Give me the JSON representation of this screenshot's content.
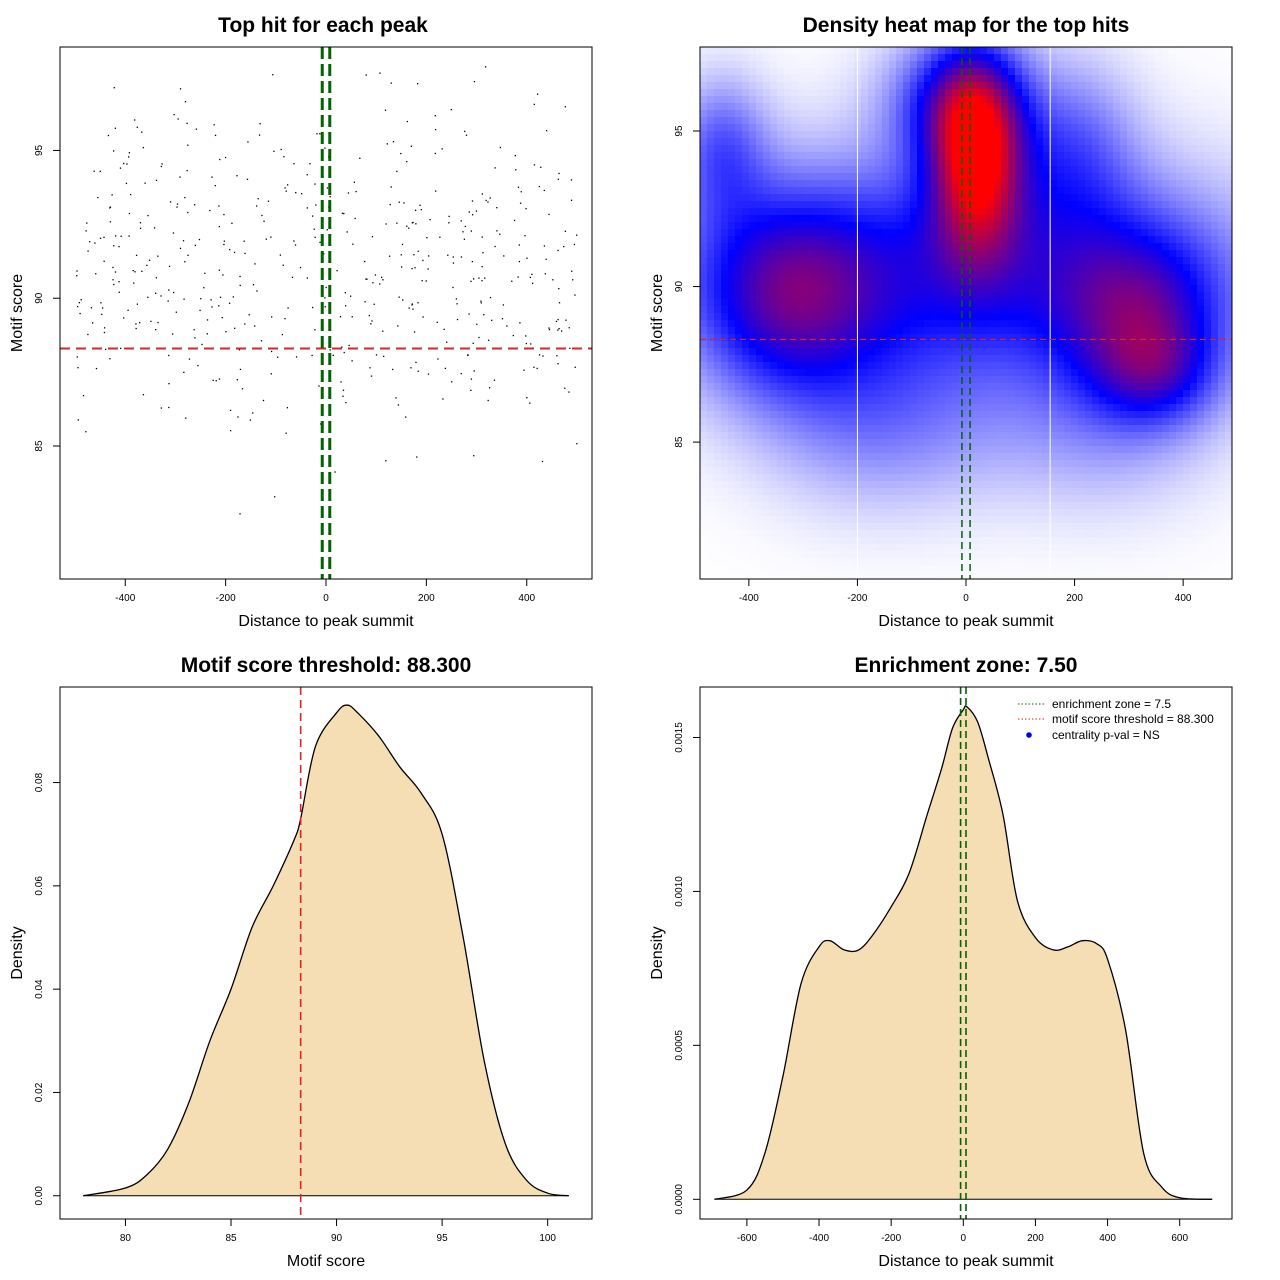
{
  "chart_data": [
    {
      "id": "scatter",
      "type": "scatter",
      "title": "Top hit for each peak",
      "xlabel": "Distance to peak summit",
      "ylabel": "Motif score",
      "xlim": [
        -530,
        530
      ],
      "ylim": [
        80.5,
        98.5
      ],
      "xticks": [
        -400,
        -200,
        0,
        200,
        400
      ],
      "yticks": [
        85,
        90,
        95
      ],
      "threshold_y": 88.3,
      "enrichment_lines_x": [
        -7.5,
        7.5
      ],
      "point_count": 520,
      "x_range": [
        -500,
        500
      ],
      "y_range": [
        81,
        98
      ],
      "colors": {
        "points": "#000000",
        "threshold": "#dd2222",
        "enrichment": "#006400"
      }
    },
    {
      "id": "heatmap",
      "type": "heatmap",
      "title": "Density heat map for the top hits",
      "xlabel": "Distance to peak summit",
      "ylabel": "Motif score",
      "xlim": [
        -490,
        490
      ],
      "ylim": [
        80.6,
        97.7
      ],
      "xticks": [
        -400,
        -200,
        0,
        200,
        400
      ],
      "yticks": [
        85,
        90,
        95
      ],
      "threshold_y": 88.3,
      "enrichment_lines_x": [
        -7.5,
        7.5
      ],
      "white_lines_x": [
        -200,
        155
      ],
      "hotspots": [
        {
          "x": 20,
          "y": 94.2,
          "sx": 60,
          "sy": 2.2,
          "w": 1.0
        },
        {
          "x": -20,
          "y": 96.0,
          "sx": 90,
          "sy": 1.5,
          "w": 0.5
        },
        {
          "x": 0,
          "y": 90.5,
          "sx": 350,
          "sy": 2.6,
          "w": 0.6
        },
        {
          "x": -330,
          "y": 89.6,
          "sx": 120,
          "sy": 2.3,
          "w": 0.55
        },
        {
          "x": 320,
          "y": 89.2,
          "sx": 110,
          "sy": 1.9,
          "w": 0.5
        },
        {
          "x": 350,
          "y": 87.2,
          "sx": 80,
          "sy": 1.2,
          "w": 0.35
        },
        {
          "x": -450,
          "y": 94.5,
          "sx": 60,
          "sy": 1.6,
          "w": 0.35
        },
        {
          "x": 200,
          "y": 94.5,
          "sx": 80,
          "sy": 2.0,
          "w": 0.3
        },
        {
          "x": -150,
          "y": 85.5,
          "sx": 150,
          "sy": 2.0,
          "w": 0.25
        },
        {
          "x": 250,
          "y": 85.5,
          "sx": 150,
          "sy": 2.0,
          "w": 0.2
        }
      ],
      "colors": {
        "low": "#ffffff",
        "mid": "#0000ff",
        "high": "#ff0000",
        "threshold": "#dd2222",
        "enrichment": "#006400"
      }
    },
    {
      "id": "score-density",
      "type": "area",
      "title": "Motif score threshold: 88.300",
      "xlabel": "Motif score",
      "ylabel": "Density",
      "xlim": [
        76.9,
        102.1
      ],
      "ylim": [
        -0.0045,
        0.0985
      ],
      "xticks": [
        80,
        85,
        90,
        95,
        100
      ],
      "yticks": [
        0.0,
        0.02,
        0.04,
        0.06,
        0.08
      ],
      "ytick_labels": [
        "0.00",
        "0.02",
        "0.04",
        "0.06",
        "0.08"
      ],
      "x": [
        78,
        80,
        81,
        82,
        83,
        84,
        85,
        86,
        87,
        88,
        88.3,
        89,
        90,
        90.5,
        91,
        92,
        93,
        94,
        95,
        96,
        97,
        98,
        99,
        100,
        101
      ],
      "y": [
        0.0,
        0.0015,
        0.004,
        0.009,
        0.018,
        0.03,
        0.04,
        0.052,
        0.06,
        0.069,
        0.073,
        0.087,
        0.0935,
        0.095,
        0.0935,
        0.089,
        0.083,
        0.078,
        0.07,
        0.05,
        0.026,
        0.01,
        0.003,
        0.0005,
        0.0
      ],
      "threshold_x": 88.3,
      "colors": {
        "fill": "#f5deb3",
        "line": "#000000",
        "threshold": "#dd2222"
      }
    },
    {
      "id": "distance-density",
      "type": "area",
      "title": "Enrichment zone: 7.50",
      "xlabel": "Distance to peak summit",
      "ylabel": "Density",
      "xlim": [
        -730,
        745
      ],
      "ylim": [
        -6.4e-05,
        0.001664
      ],
      "xticks": [
        -600,
        -400,
        -200,
        0,
        200,
        400,
        600
      ],
      "yticks": [
        0.0,
        0.0005,
        0.001,
        0.0015
      ],
      "ytick_labels": [
        "0.0000",
        "0.0005",
        "0.0010",
        "0.0015"
      ],
      "x": [
        -690,
        -600,
        -550,
        -500,
        -450,
        -400,
        -370,
        -330,
        -290,
        -250,
        -200,
        -150,
        -100,
        -60,
        -30,
        0,
        10,
        40,
        70,
        110,
        150,
        200,
        250,
        290,
        330,
        370,
        400,
        450,
        500,
        550,
        600,
        690
      ],
      "y": [
        0.0,
        3e-05,
        0.00015,
        0.0004,
        0.0007,
        0.00082,
        0.00084,
        0.00081,
        0.00081,
        0.00086,
        0.00095,
        0.00106,
        0.00125,
        0.0014,
        0.00153,
        0.00159,
        0.0016,
        0.00155,
        0.00143,
        0.00125,
        0.00097,
        0.00085,
        0.00081,
        0.00082,
        0.00084,
        0.00083,
        0.00078,
        0.00055,
        0.00015,
        4e-05,
        5e-06,
        0.0
      ],
      "enrichment_lines_x": [
        -7.5,
        7.5
      ],
      "legend": [
        {
          "label": "enrichment zone = 7.5",
          "style": "dotted",
          "color": "#006400"
        },
        {
          "label": "motif score threshold = 88.300",
          "style": "dotted",
          "color": "#dd2222"
        },
        {
          "label": "centrality p-val = NS",
          "style": "dot",
          "color": "#0000ff"
        }
      ],
      "legend_position": "top-right",
      "colors": {
        "fill": "#f5deb3",
        "line": "#000000",
        "enrichment": "#006400"
      }
    }
  ]
}
